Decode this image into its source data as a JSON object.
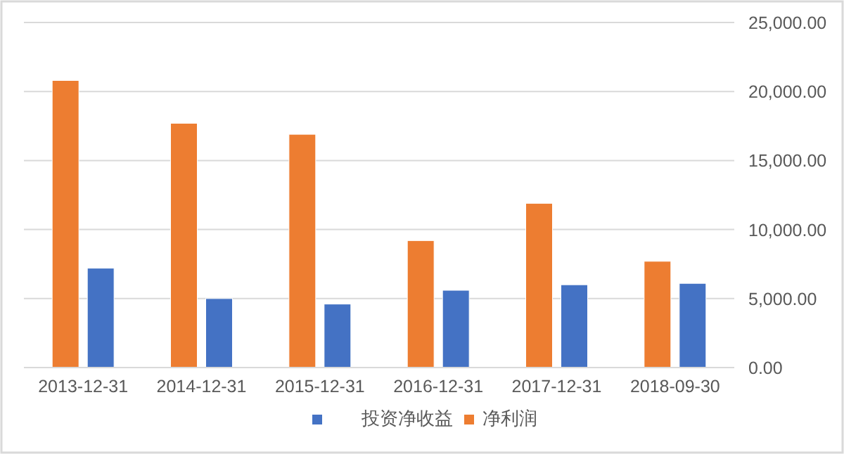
{
  "chart_data": {
    "type": "bar",
    "categories": [
      "2013-12-31",
      "2014-12-31",
      "2015-12-31",
      "2016-12-31",
      "2017-12-31",
      "2018-09-30"
    ],
    "series": [
      {
        "name": "净利润",
        "color": "#ed7d31",
        "values": [
          20800,
          17700,
          16900,
          9200,
          11900,
          7700
        ]
      },
      {
        "name": "投资净收益",
        "color": "#4472c4",
        "values": [
          7200,
          5000,
          4600,
          5600,
          6000,
          6100
        ]
      }
    ],
    "ylim": [
      0,
      25000
    ],
    "yticks": [
      {
        "value": 0,
        "label": "0.00"
      },
      {
        "value": 5000,
        "label": "5,000.00"
      },
      {
        "value": 10000,
        "label": "10,000.00"
      },
      {
        "value": 15000,
        "label": "15,000.00"
      },
      {
        "value": 20000,
        "label": "20,000.00"
      },
      {
        "value": 25000,
        "label": "25,000.00"
      }
    ],
    "grid": "y",
    "legend": "bottom"
  }
}
